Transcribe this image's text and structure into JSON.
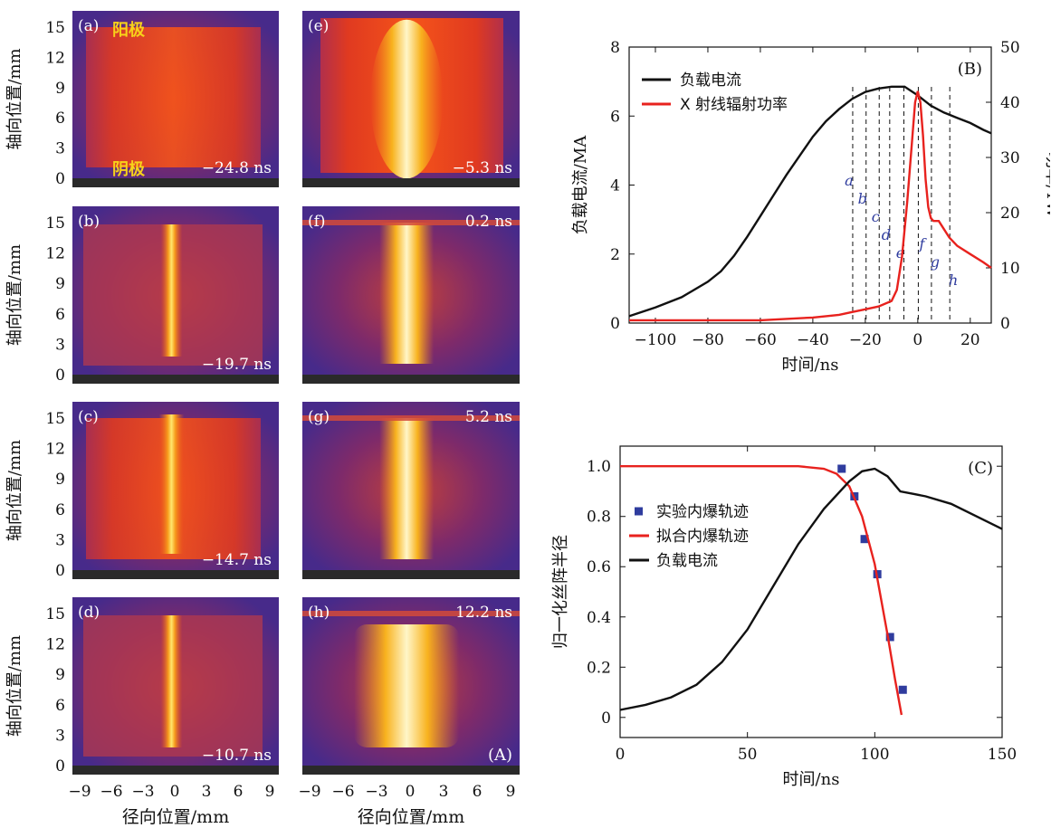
{
  "panel_a": {
    "images": [
      {
        "tag": "(a)",
        "time": "−24.8 ns",
        "anode": "阳极",
        "cathode": "阴极"
      },
      {
        "tag": "(b)",
        "time": "−19.7 ns"
      },
      {
        "tag": "(c)",
        "time": "−14.7 ns"
      },
      {
        "tag": "(d)",
        "time": "−10.7 ns"
      },
      {
        "tag": "(e)",
        "time": "−5.3 ns"
      },
      {
        "tag": "(f)",
        "time": "0.2 ns"
      },
      {
        "tag": "(g)",
        "time": "5.2 ns"
      },
      {
        "tag": "(h)",
        "time": "12.2 ns"
      }
    ],
    "panel_label": "(A)",
    "ylabel": "轴向位置/mm",
    "xlabel": "径向位置/mm",
    "yticks": [
      "0",
      "3",
      "6",
      "9",
      "12",
      "15"
    ],
    "xticks": [
      "−9",
      "−6",
      "−3",
      "0",
      "3",
      "6",
      "9"
    ]
  },
  "chart_data": [
    {
      "type": "line",
      "panel_label": "(B)",
      "xlabel": "时间/ns",
      "ylabel": "负载电流/MA",
      "y2label": "功率/TW",
      "xlim": [
        -110,
        28
      ],
      "ylim": [
        0,
        8
      ],
      "y2lim": [
        0,
        50
      ],
      "xticks": [
        "−100",
        "−80",
        "−60",
        "−40",
        "−20",
        "0",
        "20"
      ],
      "yticks": [
        "0",
        "2",
        "4",
        "6",
        "8"
      ],
      "y2ticks": [
        "0",
        "10",
        "20",
        "30",
        "40",
        "50"
      ],
      "series": [
        {
          "name": "负载电流",
          "color": "#111111",
          "axis": "left",
          "x": [
            -110,
            -100,
            -90,
            -80,
            -75,
            -70,
            -65,
            -60,
            -55,
            -50,
            -45,
            -40,
            -35,
            -30,
            -25,
            -20,
            -15,
            -10,
            -5,
            0,
            5,
            10,
            15,
            20,
            25,
            28
          ],
          "y": [
            0.2,
            0.45,
            0.75,
            1.2,
            1.5,
            1.95,
            2.5,
            3.1,
            3.7,
            4.3,
            4.85,
            5.4,
            5.85,
            6.2,
            6.5,
            6.7,
            6.8,
            6.85,
            6.85,
            6.6,
            6.3,
            6.1,
            5.95,
            5.8,
            5.6,
            5.5
          ]
        },
        {
          "name": "X 射线辐射功率",
          "color": "#e8221e",
          "axis": "right",
          "x": [
            -110,
            -80,
            -60,
            -40,
            -30,
            -25,
            -20,
            -15,
            -10,
            -8,
            -6,
            -4,
            -2,
            -1,
            0,
            1,
            2,
            3,
            4,
            5,
            6,
            8,
            10,
            12,
            15,
            20,
            25,
            28
          ],
          "y": [
            0.5,
            0.5,
            0.5,
            1,
            1.5,
            2,
            2.5,
            3,
            4,
            6,
            12,
            22,
            34,
            40,
            42,
            40,
            34,
            26,
            21,
            19,
            18.5,
            18.5,
            17,
            15.5,
            14,
            12.5,
            11,
            10
          ]
        }
      ],
      "markers": [
        {
          "label": "a",
          "x": -24.8
        },
        {
          "label": "b",
          "x": -19.7
        },
        {
          "label": "c",
          "x": -14.7
        },
        {
          "label": "d",
          "x": -10.7
        },
        {
          "label": "e",
          "x": -5.3
        },
        {
          "label": "f",
          "x": 0.2
        },
        {
          "label": "g",
          "x": 5.2
        },
        {
          "label": "h",
          "x": 12.2
        }
      ],
      "legend_position": "top-left"
    },
    {
      "type": "line",
      "panel_label": "(C)",
      "xlabel": "时间/ns",
      "ylabel": "归一化丝阵半径",
      "xlim": [
        0,
        150
      ],
      "ylim": [
        -0.08,
        1.08
      ],
      "xticks": [
        "0",
        "50",
        "100",
        "150"
      ],
      "yticks": [
        "0",
        "0.2",
        "0.4",
        "0.6",
        "0.8",
        "1.0"
      ],
      "series": [
        {
          "name": "实验内爆轨迹",
          "color": "#2f3c9e",
          "style": "scatter",
          "x": [
            87,
            92,
            96,
            101,
            106,
            111
          ],
          "y": [
            0.99,
            0.88,
            0.71,
            0.57,
            0.32,
            0.11
          ]
        },
        {
          "name": "拟合内爆轨迹",
          "color": "#e8221e",
          "style": "line",
          "x": [
            0,
            50,
            70,
            80,
            85,
            90,
            95,
            100,
            105,
            108,
            110.5
          ],
          "y": [
            1.0,
            1.0,
            1.0,
            0.99,
            0.97,
            0.92,
            0.8,
            0.61,
            0.33,
            0.15,
            0.01
          ]
        },
        {
          "name": "负载电流",
          "color": "#111111",
          "style": "line",
          "x": [
            0,
            10,
            20,
            30,
            40,
            50,
            60,
            70,
            80,
            90,
            95,
            100,
            105,
            110,
            115,
            120,
            130,
            140,
            150
          ],
          "y": [
            0.03,
            0.05,
            0.08,
            0.13,
            0.22,
            0.35,
            0.52,
            0.69,
            0.83,
            0.94,
            0.98,
            0.99,
            0.96,
            0.9,
            0.89,
            0.88,
            0.85,
            0.8,
            0.75
          ]
        }
      ],
      "legend_position": "top-left"
    }
  ]
}
